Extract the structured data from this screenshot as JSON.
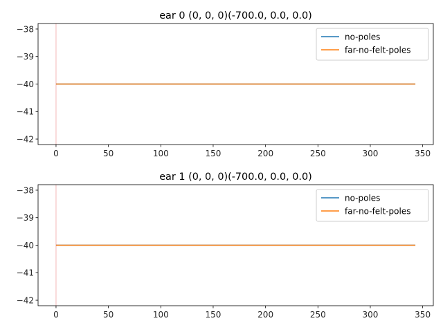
{
  "chart_data": [
    {
      "type": "line",
      "title": "ear 0 (0, 0, 0)(-700.0, 0.0, 0.0)",
      "xlabel": "",
      "ylabel": "",
      "xlim": [
        -17.15,
        360.15
      ],
      "ylim": [
        -42.2,
        -37.8
      ],
      "xticks": [
        0,
        50,
        100,
        150,
        200,
        250,
        300,
        350
      ],
      "xtick_labels": [
        "0",
        "50",
        "100",
        "150",
        "200",
        "250",
        "300",
        "350"
      ],
      "yticks": [
        -38,
        -39,
        -40,
        -41,
        -42
      ],
      "ytick_labels": [
        "−38",
        "−39",
        "−40",
        "−41",
        "−42"
      ],
      "grid": false,
      "legend_position": "top-right",
      "vline": {
        "x": 0,
        "color": "#f4b6b6"
      },
      "series": [
        {
          "name": "no-poles",
          "color": "#1f77b4",
          "x": [
            0,
            343
          ],
          "y": [
            -40,
            -40
          ]
        },
        {
          "name": "far-no-felt-poles",
          "color": "#ff7f0e",
          "x": [
            0,
            343
          ],
          "y": [
            -40,
            -40
          ]
        }
      ]
    },
    {
      "type": "line",
      "title": "ear 1 (0, 0, 0)(-700.0, 0.0, 0.0)",
      "xlabel": "",
      "ylabel": "",
      "xlim": [
        -17.15,
        360.15
      ],
      "ylim": [
        -42.2,
        -37.8
      ],
      "xticks": [
        0,
        50,
        100,
        150,
        200,
        250,
        300,
        350
      ],
      "xtick_labels": [
        "0",
        "50",
        "100",
        "150",
        "200",
        "250",
        "300",
        "350"
      ],
      "yticks": [
        -38,
        -39,
        -40,
        -41,
        -42
      ],
      "ytick_labels": [
        "−38",
        "−39",
        "−40",
        "−41",
        "−42"
      ],
      "grid": false,
      "legend_position": "top-right",
      "vline": {
        "x": 0,
        "color": "#f4b6b6"
      },
      "series": [
        {
          "name": "no-poles",
          "color": "#1f77b4",
          "x": [
            0,
            343
          ],
          "y": [
            -40,
            -40
          ]
        },
        {
          "name": "far-no-felt-poles",
          "color": "#ff7f0e",
          "x": [
            0,
            343
          ],
          "y": [
            -40,
            -40
          ]
        }
      ]
    }
  ]
}
